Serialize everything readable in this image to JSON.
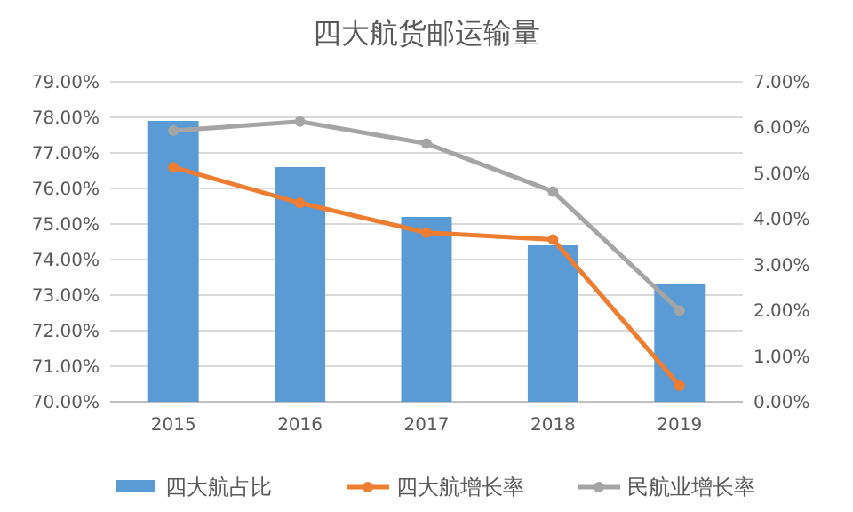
{
  "chart_data": {
    "type": "bar",
    "title": "四大航货邮运输量",
    "categories": [
      "2015",
      "2016",
      "2017",
      "2018",
      "2019"
    ],
    "series": [
      {
        "name": "四大航占比",
        "color": "#5b9bd5",
        "values": [
          77.9,
          76.6,
          75.2,
          74.4,
          73.3
        ]
      },
      {
        "name": "四大航增长率",
        "type": "line",
        "axis": "y2",
        "color": "#ed7d31",
        "values": [
          5.13,
          4.35,
          3.7,
          3.55,
          0.35
        ]
      },
      {
        "name": "民航业增长率",
        "type": "line",
        "axis": "y2",
        "color": "#a5a5a5",
        "values": [
          5.93,
          6.13,
          5.65,
          4.6,
          2.0
        ]
      }
    ],
    "ylim": [
      70,
      79
    ],
    "yticks": [
      {
        "value": 70,
        "label": "70.00%"
      },
      {
        "value": 71,
        "label": "71.00%"
      },
      {
        "value": 72,
        "label": "72.00%"
      },
      {
        "value": 73,
        "label": "73.00%"
      },
      {
        "value": 74,
        "label": "74.00%"
      },
      {
        "value": 75,
        "label": "75.00%"
      },
      {
        "value": 76,
        "label": "76.00%"
      },
      {
        "value": 77,
        "label": "77.00%"
      },
      {
        "value": 78,
        "label": "78.00%"
      },
      {
        "value": 79,
        "label": "79.00%"
      }
    ],
    "y2lim": [
      0,
      7
    ],
    "y2ticks": [
      {
        "value": 0,
        "label": "0.00%"
      },
      {
        "value": 1,
        "label": "1.00%"
      },
      {
        "value": 2,
        "label": "2.00%"
      },
      {
        "value": 3,
        "label": "3.00%"
      },
      {
        "value": 4,
        "label": "4.00%"
      },
      {
        "value": 5,
        "label": "5.00%"
      },
      {
        "value": 6,
        "label": "6.00%"
      },
      {
        "value": 7,
        "label": "7.00%"
      }
    ],
    "grid": "y",
    "legend": "bottom",
    "marker": "circle"
  }
}
